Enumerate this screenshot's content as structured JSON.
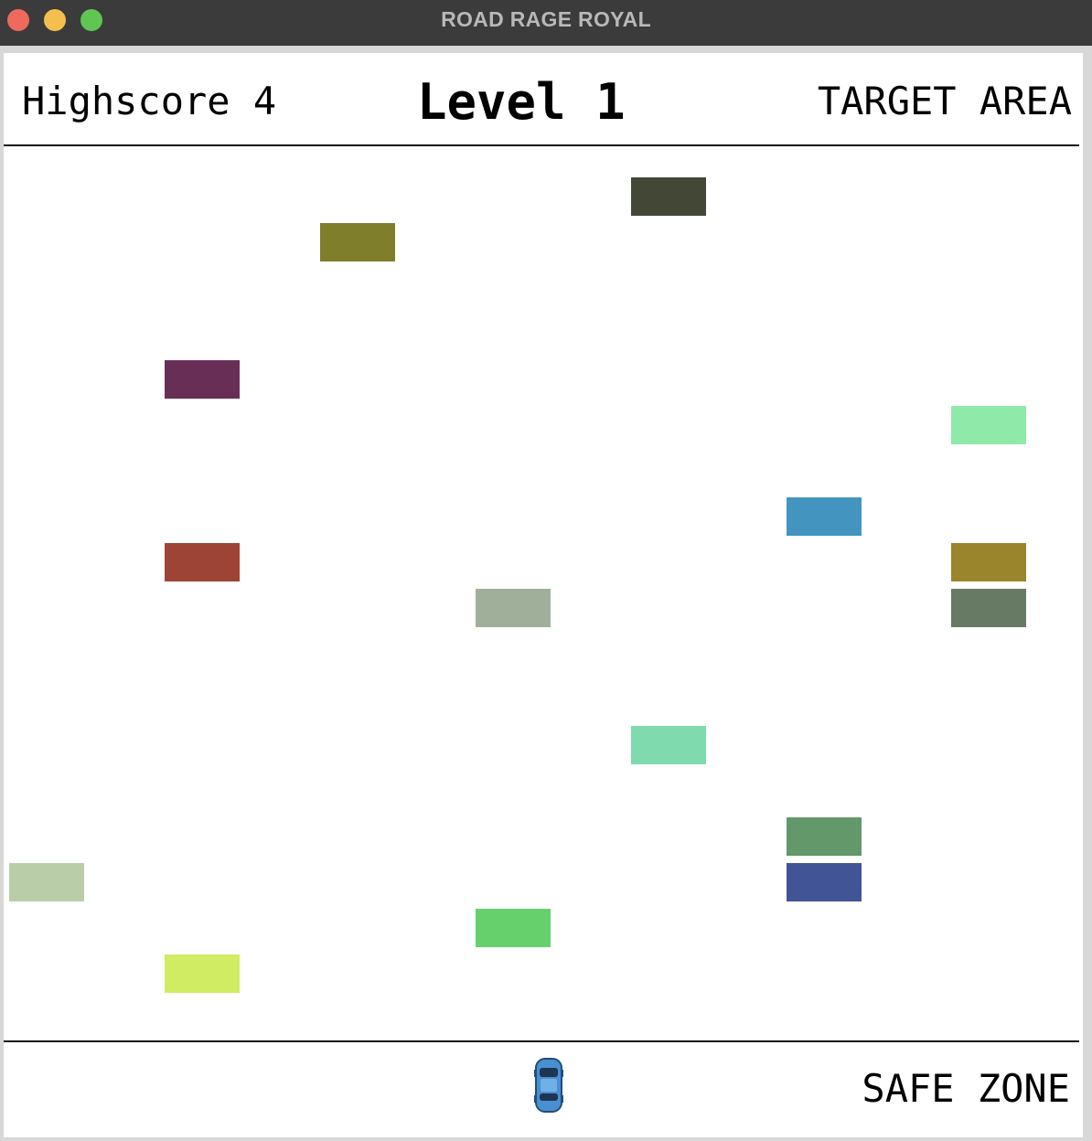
{
  "window": {
    "title": "ROAD RAGE ROYAL"
  },
  "hud": {
    "highscore_label": "Highscore 4",
    "level_label": "Level 1",
    "target_label": "TARGET AREA",
    "safe_label": "SAFE ZONE"
  },
  "player": {
    "icon": "car-icon",
    "color": "#4a8fd0"
  },
  "traffic_cars": [
    {
      "color": "#434736"
    },
    {
      "color": "#7f7e2b"
    },
    {
      "color": "#682e55"
    },
    {
      "color": "#8fe9a9"
    },
    {
      "color": "#4395bf"
    },
    {
      "color": "#9e4436"
    },
    {
      "color": "#9a852c"
    },
    {
      "color": "#a0af9a"
    },
    {
      "color": "#677b64"
    },
    {
      "color": "#7fdbad"
    },
    {
      "color": "#62986a"
    },
    {
      "color": "#b9cea8"
    },
    {
      "color": "#405496"
    },
    {
      "color": "#66d06c"
    },
    {
      "color": "#cfec62"
    }
  ]
}
